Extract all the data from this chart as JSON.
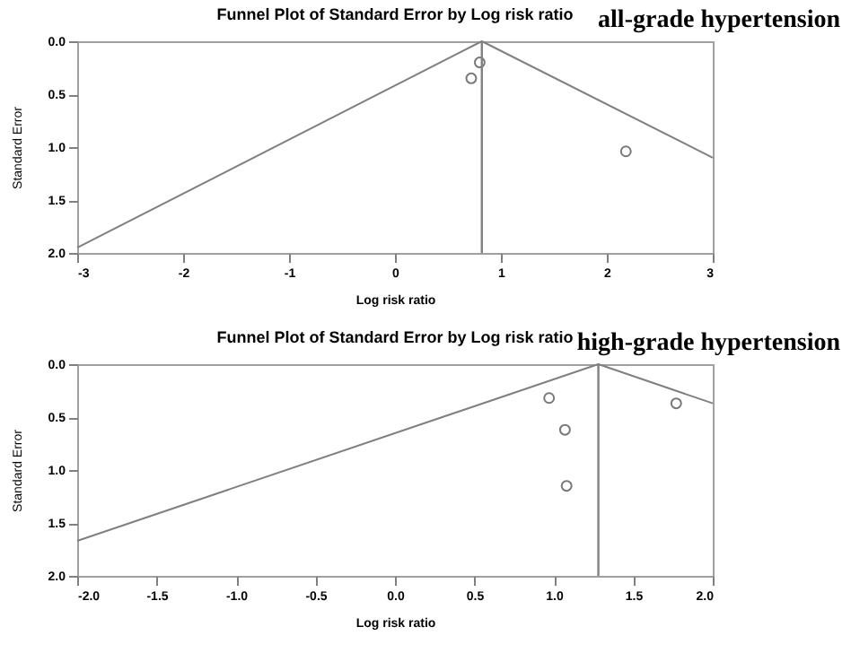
{
  "chart_data": [
    {
      "type": "scatter",
      "title": "Funnel Plot of Standard Error by Log risk ratio",
      "subtitle": "all-grade hypertension",
      "xlabel": "Log risk ratio",
      "ylabel": "Standard Error",
      "xlim": [
        -3,
        3
      ],
      "xticks": [
        -3,
        -2,
        -1,
        0,
        1,
        2,
        3
      ],
      "ylim": [
        2,
        0
      ],
      "yticks": [
        {
          "value": 0,
          "label": "0.0"
        },
        {
          "value": 0.5,
          "label": "0.5"
        },
        {
          "value": 1,
          "label": "1.0"
        },
        {
          "value": 1.5,
          "label": "1.5"
        },
        {
          "value": 2,
          "label": "2.0"
        }
      ],
      "grid": false,
      "series": [
        {
          "marker": "circle",
          "color": "#404040",
          "x": [
            0.8,
            0.72,
            2.18
          ],
          "values": [
            0.2,
            0.35,
            1.04
          ]
        },
        {
          "type": "line",
          "color": "#808080",
          "x": [
            -3,
            0.82,
            3
          ],
          "values": [
            1.95,
            0,
            1.1
          ]
        }
      ],
      "ref_lines": [
        {
          "axis": "x",
          "value": 0.82,
          "color": "#808080"
        }
      ]
    },
    {
      "type": "scatter",
      "title": "Funnel Plot of Standard Error by Log risk ratio",
      "subtitle": "high-grade hypertension",
      "xlabel": "Log risk ratio",
      "ylabel": "Standard Error",
      "xlim": [
        -2,
        2
      ],
      "xticks": [
        {
          "value": -2,
          "label": "-2.0"
        },
        {
          "value": -1.5,
          "label": "-1.5"
        },
        {
          "value": -1,
          "label": "-1.0"
        },
        {
          "value": -0.5,
          "label": "-0.5"
        },
        {
          "value": 0,
          "label": "0.0"
        },
        {
          "value": 0.5,
          "label": "0.5"
        },
        {
          "value": 1,
          "label": "1.0"
        },
        {
          "value": 1.5,
          "label": "1.5"
        },
        {
          "value": 2,
          "label": "2.0"
        }
      ],
      "ylim": [
        2,
        0
      ],
      "yticks": [
        {
          "value": 0,
          "label": "0.0"
        },
        {
          "value": 0.5,
          "label": "0.5"
        },
        {
          "value": 1,
          "label": "1.0"
        },
        {
          "value": 1.5,
          "label": "1.5"
        },
        {
          "value": 2,
          "label": "2.0"
        }
      ],
      "grid": false,
      "series": [
        {
          "marker": "circle",
          "color": "#404040",
          "x": [
            0.97,
            1.07,
            1.08,
            1.77
          ],
          "values": [
            0.32,
            0.62,
            1.15,
            0.37
          ]
        },
        {
          "type": "line",
          "color": "#808080",
          "x": [
            -2,
            1.28,
            2
          ],
          "values": [
            1.67,
            0,
            0.37
          ]
        }
      ],
      "ref_lines": [
        {
          "axis": "x",
          "value": 1.28,
          "color": "#808080"
        }
      ]
    }
  ]
}
